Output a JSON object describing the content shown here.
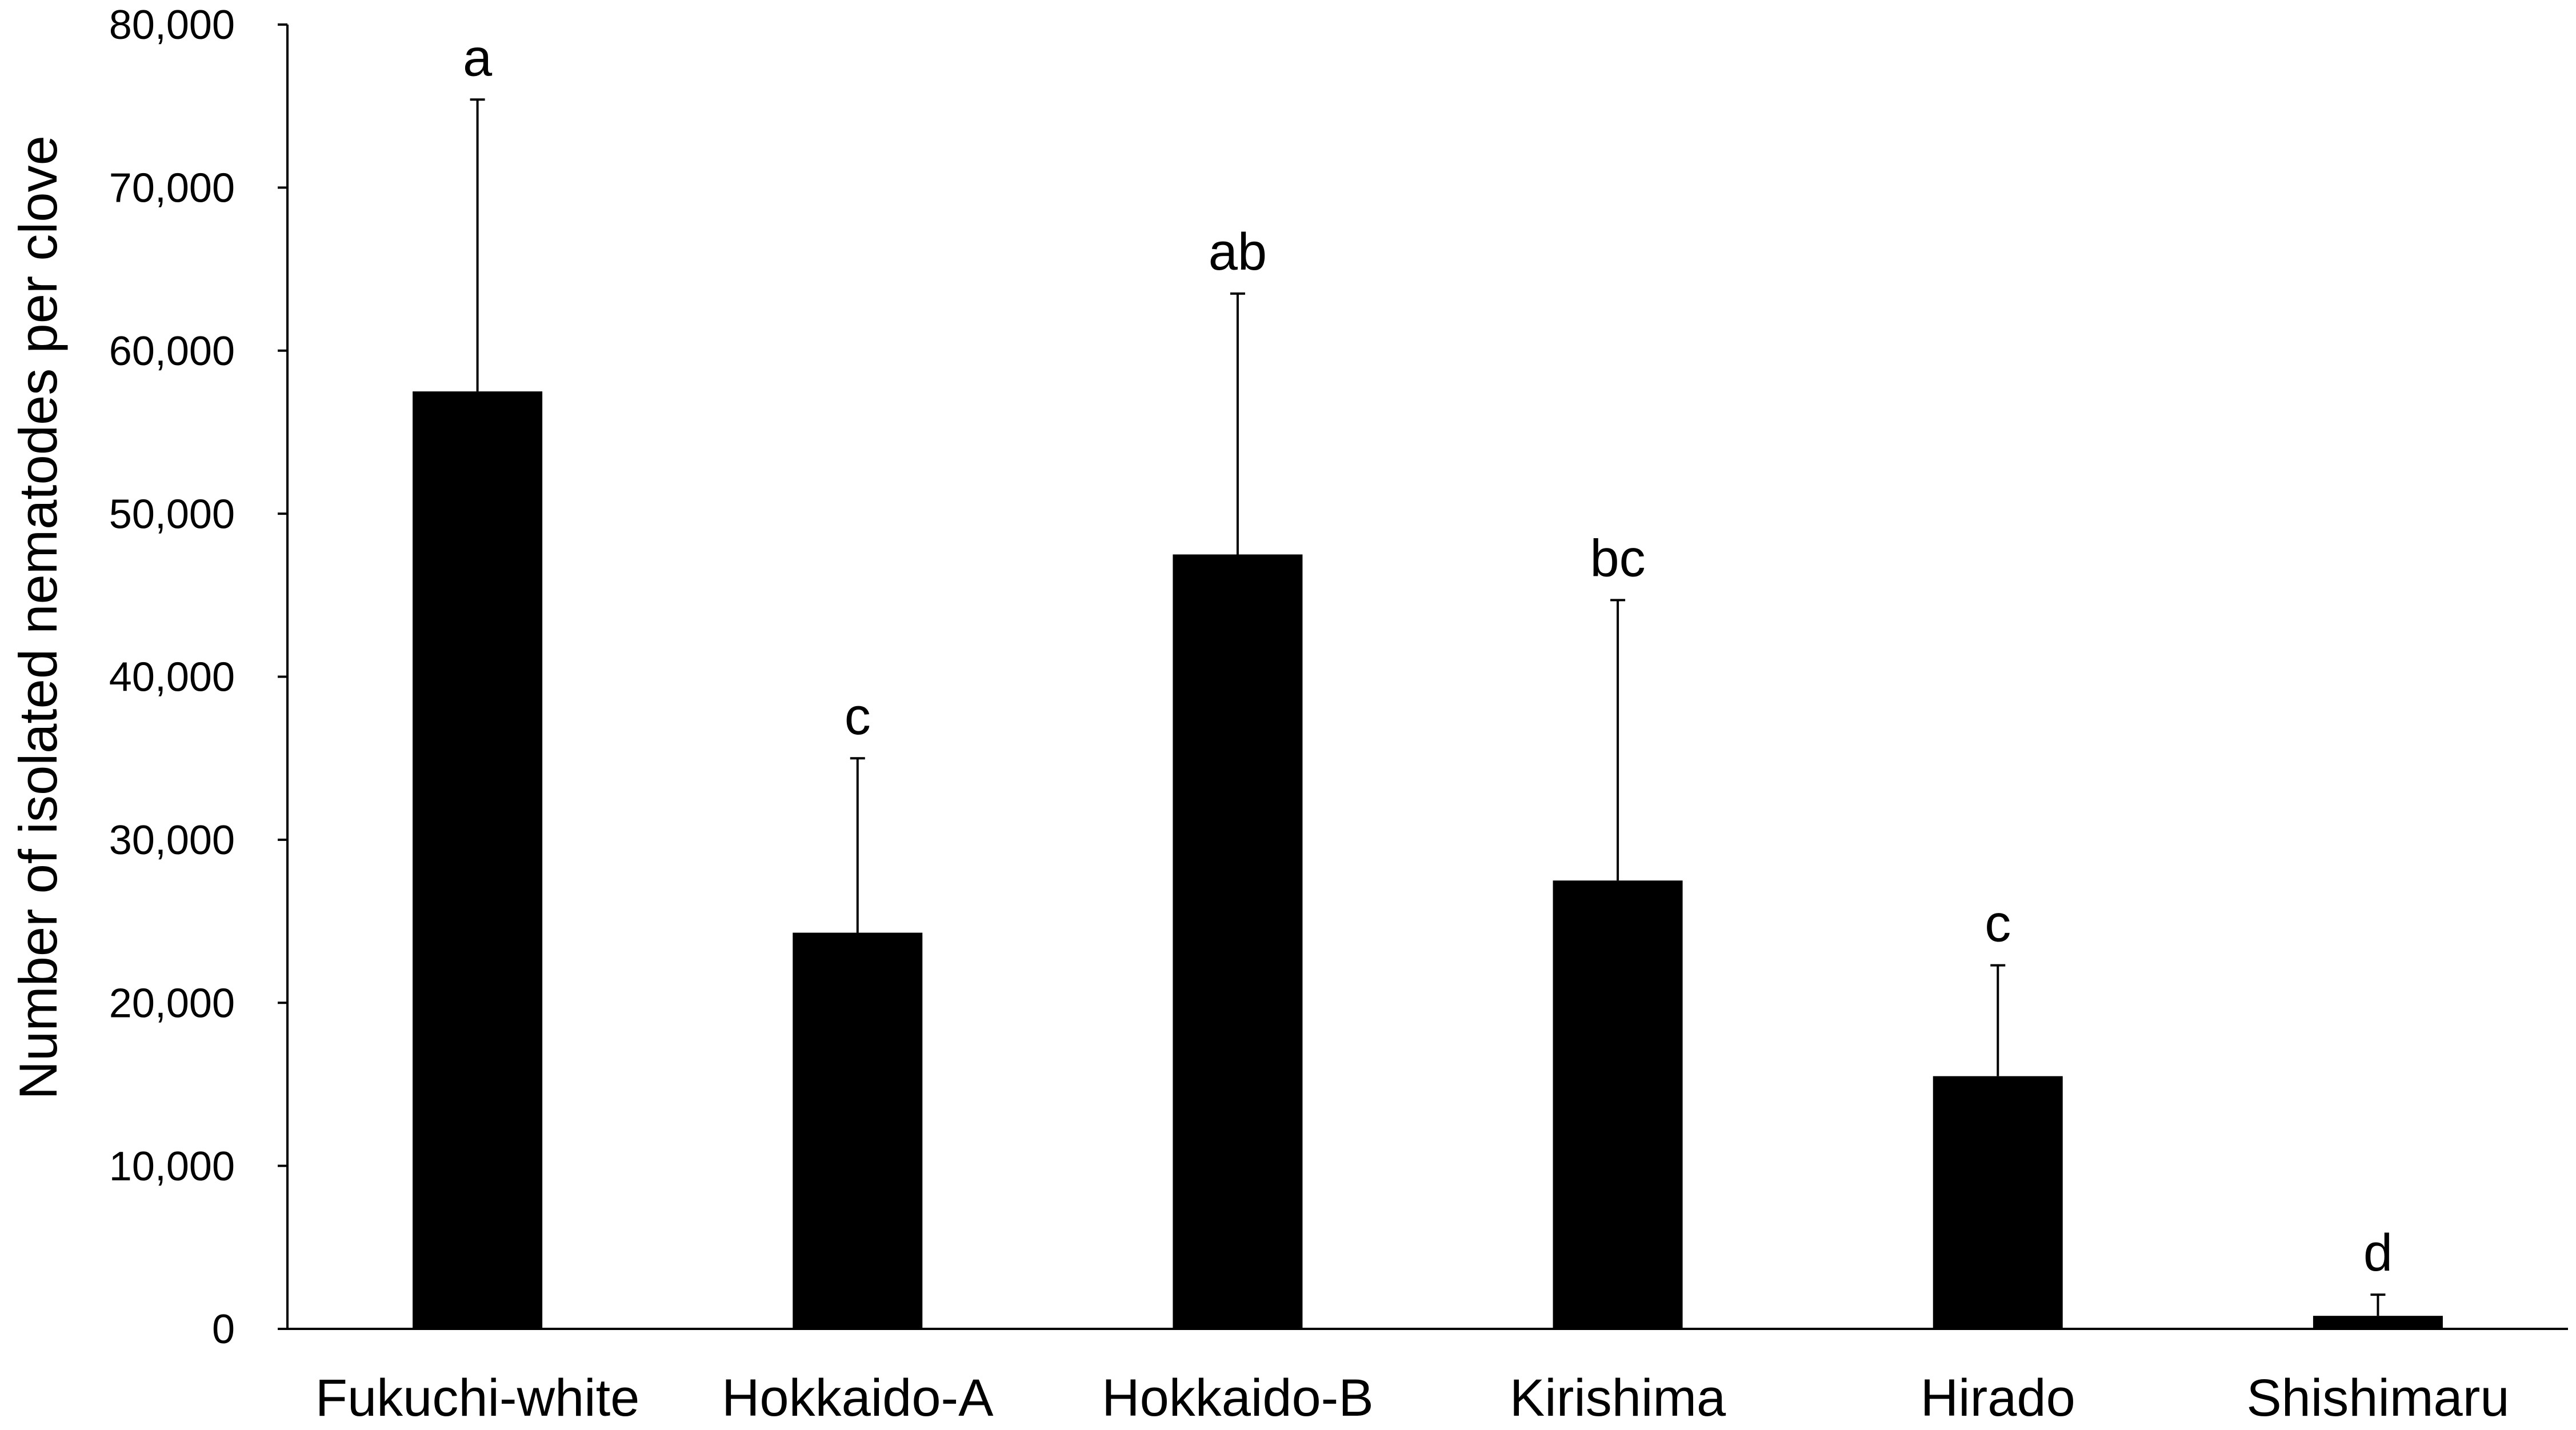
{
  "chart_data": {
    "type": "bar",
    "ylabel": "Number of isolated nematodes per clove",
    "categories": [
      "Fukuchi-white",
      "Hokkaido-A",
      "Hokkaido-B",
      "Kirishima",
      "Hirado",
      "Shishimaru"
    ],
    "values": [
      57500,
      24300,
      47500,
      27500,
      15500,
      800
    ],
    "error_upper": [
      17900,
      10700,
      16000,
      17200,
      6800,
      1300
    ],
    "annotations": [
      "a",
      "c",
      "ab",
      "bc",
      "c",
      "d"
    ],
    "ylim": [
      0,
      80000
    ],
    "yticks": [
      0,
      10000,
      20000,
      30000,
      40000,
      50000,
      60000,
      70000,
      80000
    ],
    "ytick_labels": [
      "0",
      "10,000",
      "20,000",
      "30,000",
      "40,000",
      "50,000",
      "60,000",
      "70,000",
      "80,000"
    ],
    "bar_color": "#000000",
    "grid": false,
    "legend": false
  }
}
